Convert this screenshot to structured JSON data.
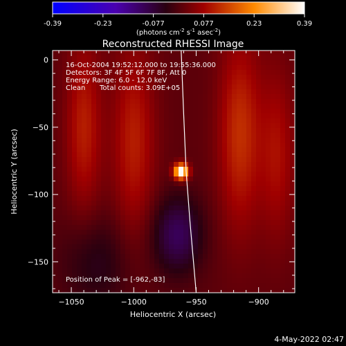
{
  "colorbar": {
    "ticks": [
      "-0.39",
      "-0.23",
      "-0.077",
      "0.077",
      "0.23",
      "0.39"
    ],
    "unit_base": "(photons cm",
    "unit_sup1": "-2",
    "unit_mid": " s",
    "unit_sup2": "-1",
    "unit_end": " asec",
    "unit_sup3": "-2",
    "unit_close": ")"
  },
  "title": "Reconstructed RHESSI Image",
  "info": {
    "line1": "16-Oct-2004 19:52:12.000 to 19:55:36.000",
    "line2": "Detectors: 3F 4F 5F 6F 7F 8F, Att 0",
    "line3": "Energy Range: 6.0 - 12.0 keV",
    "line4_method": "Clean",
    "line4_counts": "Total counts: 3.09E+05"
  },
  "peak_text": "Position of Peak = [-962,-83]",
  "timestamp": "4-May-2022 02:47",
  "chart_data": {
    "type": "heatmap",
    "title": "Reconstructed RHESSI Image",
    "xlabel": "Heliocentric X (arcsec)",
    "ylabel": "Heliocentric Y (arcsec)",
    "xlim": [
      -1065,
      -871
    ],
    "ylim": [
      -173,
      7
    ],
    "x_ticks": [
      -1050,
      -1000,
      -950,
      -900
    ],
    "y_ticks": [
      0,
      -50,
      -100,
      -150
    ],
    "x_tick_labels": [
      "−1050",
      "−1000",
      "−950",
      "−900"
    ],
    "y_tick_labels": [
      "0",
      "−50",
      "−100",
      "−150"
    ],
    "colorbar_range": [
      -0.39,
      0.39
    ],
    "peak": {
      "x": -962,
      "y": -83,
      "value": 0.39
    },
    "limb_curve": [
      [
        -962,
        7
      ],
      [
        -960,
        -40
      ],
      [
        -958,
        -83
      ],
      [
        -955,
        -120
      ],
      [
        -950,
        -173
      ]
    ],
    "features": [
      {
        "x": -962,
        "y": -83,
        "sigma": 4,
        "amp": 0.42
      },
      {
        "x": -1040,
        "y": -50,
        "sx": 10,
        "sy": 45,
        "amp": 0.1
      },
      {
        "x": -1000,
        "y": -60,
        "sx": 12,
        "sy": 50,
        "amp": 0.1
      },
      {
        "x": -915,
        "y": -55,
        "sx": 12,
        "sy": 50,
        "amp": 0.12
      },
      {
        "x": -885,
        "y": -70,
        "sx": 10,
        "sy": 45,
        "amp": 0.08
      },
      {
        "x": -965,
        "y": -130,
        "sx": 14,
        "sy": 20,
        "amp": -0.12
      },
      {
        "x": -1030,
        "y": -150,
        "sx": 20,
        "sy": 25,
        "amp": -0.06
      }
    ]
  }
}
